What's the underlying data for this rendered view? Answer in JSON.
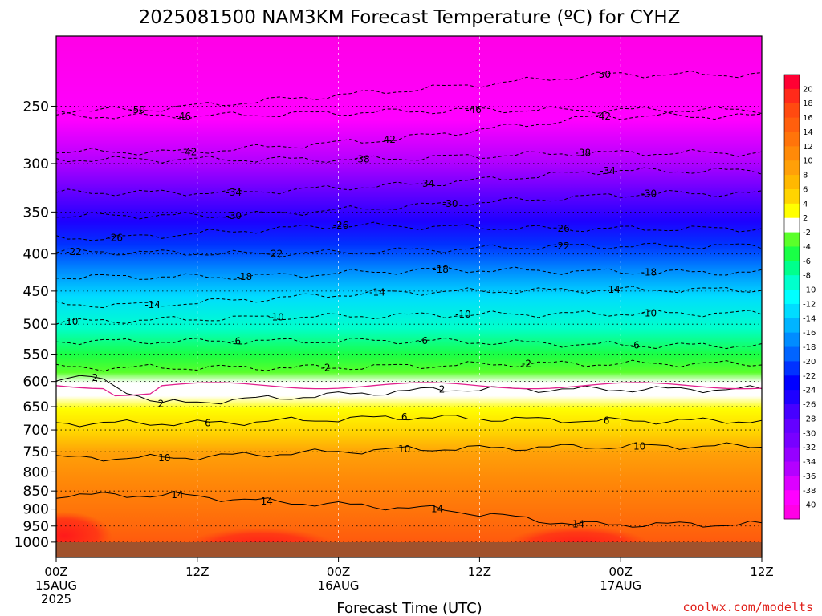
{
  "chart_data": {
    "type": "heatmap",
    "title": "2025081500 NAM3KM Forecast Temperature (ºC) for CYHZ",
    "xlabel": "Forecast Time (UTC)",
    "ylabel": "",
    "credit": "coolwx.com/modelts",
    "y_axis": {
      "scale": "log-pressure",
      "inverted": true,
      "range_hpa": [
        200,
        1050
      ],
      "ticks": [
        "250",
        "300",
        "350",
        "400",
        "450",
        "500",
        "550",
        "600",
        "650",
        "700",
        "750",
        "800",
        "850",
        "900",
        "950",
        "1000"
      ]
    },
    "x_axis": {
      "range_hours": [
        0,
        60
      ],
      "ticks": [
        {
          "hour": 0,
          "label": "00Z",
          "date": "15AUG",
          "year": "2025"
        },
        {
          "hour": 12,
          "label": "12Z",
          "date": "",
          "year": ""
        },
        {
          "hour": 24,
          "label": "00Z",
          "date": "16AUG",
          "year": ""
        },
        {
          "hour": 36,
          "label": "12Z",
          "date": "",
          "year": ""
        },
        {
          "hour": 48,
          "label": "00Z",
          "date": "17AUG",
          "year": ""
        },
        {
          "hour": 60,
          "label": "12Z",
          "date": "",
          "year": ""
        }
      ]
    },
    "grid": true,
    "colorbar": {
      "placement": "right",
      "labels": [
        "20",
        "18",
        "16",
        "14",
        "12",
        "10",
        "8",
        "6",
        "4",
        "2",
        "-2",
        "-4",
        "-6",
        "-8",
        "-10",
        "-12",
        "-14",
        "-16",
        "-18",
        "-20",
        "-22",
        "-24",
        "-26",
        "-28",
        "-30",
        "-32",
        "-34",
        "-36",
        "-38",
        "-40"
      ],
      "colors": [
        "#ff0033",
        "#ff2a1a",
        "#ff4a10",
        "#ff5f0d",
        "#ff740a",
        "#ff8a08",
        "#ffa008",
        "#ffb800",
        "#ffd400",
        "#ffff00",
        "#ffffff",
        "#5aff2a",
        "#19ff46",
        "#00ff8c",
        "#00ffcc",
        "#00ffff",
        "#00dcff",
        "#00b4ff",
        "#008cff",
        "#0064ff",
        "#0032ff",
        "#0000ff",
        "#1e00ff",
        "#4600ff",
        "#6400ff",
        "#7800ff",
        "#9600ff",
        "#b400ff",
        "#dc00ff",
        "#ff00ff",
        "#ff00e6"
      ]
    },
    "contour_labels": [
      {
        "text": "-50",
        "x": 6.9,
        "p": 253
      },
      {
        "text": "-46",
        "x": 10.8,
        "p": 258
      },
      {
        "text": "-46",
        "x": 35.5,
        "p": 253
      },
      {
        "text": "-42",
        "x": 46.5,
        "p": 258
      },
      {
        "text": "-50",
        "x": 46.5,
        "p": 226
      },
      {
        "text": "-42",
        "x": 28.2,
        "p": 278
      },
      {
        "text": "-42",
        "x": 11.3,
        "p": 289
      },
      {
        "text": "-38",
        "x": 26.0,
        "p": 296
      },
      {
        "text": "-38",
        "x": 44.8,
        "p": 290
      },
      {
        "text": "-34",
        "x": 46.9,
        "p": 307
      },
      {
        "text": "-34",
        "x": 31.5,
        "p": 320
      },
      {
        "text": "-34",
        "x": 15.1,
        "p": 329
      },
      {
        "text": "-30",
        "x": 15.1,
        "p": 354
      },
      {
        "text": "-30",
        "x": 33.5,
        "p": 341
      },
      {
        "text": "-30",
        "x": 50.4,
        "p": 330
      },
      {
        "text": "-26",
        "x": 5.0,
        "p": 380
      },
      {
        "text": "-26",
        "x": 24.2,
        "p": 365
      },
      {
        "text": "-26",
        "x": 43.0,
        "p": 369
      },
      {
        "text": "-22",
        "x": 1.5,
        "p": 397
      },
      {
        "text": "-22",
        "x": 18.6,
        "p": 400
      },
      {
        "text": "-22",
        "x": 43.0,
        "p": 390
      },
      {
        "text": "-18",
        "x": 16.0,
        "p": 430
      },
      {
        "text": "-18",
        "x": 32.7,
        "p": 420
      },
      {
        "text": "-18",
        "x": 50.4,
        "p": 424
      },
      {
        "text": "-14",
        "x": 8.2,
        "p": 470
      },
      {
        "text": "-14",
        "x": 27.3,
        "p": 452
      },
      {
        "text": "-14",
        "x": 47.3,
        "p": 448
      },
      {
        "text": "-10",
        "x": 1.2,
        "p": 496
      },
      {
        "text": "-10",
        "x": 18.7,
        "p": 489
      },
      {
        "text": "-10",
        "x": 34.6,
        "p": 485
      },
      {
        "text": "-10",
        "x": 50.4,
        "p": 483
      },
      {
        "text": "-6",
        "x": 15.3,
        "p": 528
      },
      {
        "text": "-6",
        "x": 31.2,
        "p": 527
      },
      {
        "text": "-6",
        "x": 49.2,
        "p": 535
      },
      {
        "text": "-2",
        "x": 22.9,
        "p": 574
      },
      {
        "text": "-2",
        "x": 40.0,
        "p": 567
      },
      {
        "text": "2",
        "x": 3.3,
        "p": 593
      },
      {
        "text": "2",
        "x": 8.9,
        "p": 644
      },
      {
        "text": "2",
        "x": 32.8,
        "p": 615
      },
      {
        "text": "6",
        "x": 12.9,
        "p": 685
      },
      {
        "text": "6",
        "x": 29.6,
        "p": 672
      },
      {
        "text": "6",
        "x": 46.8,
        "p": 680
      },
      {
        "text": "10",
        "x": 9.2,
        "p": 765
      },
      {
        "text": "10",
        "x": 29.6,
        "p": 744
      },
      {
        "text": "10",
        "x": 49.6,
        "p": 737
      },
      {
        "text": "14",
        "x": 10.3,
        "p": 861
      },
      {
        "text": "14",
        "x": 17.9,
        "p": 878
      },
      {
        "text": "14",
        "x": 32.4,
        "p": 900
      },
      {
        "text": "14",
        "x": 44.4,
        "p": 945
      }
    ]
  }
}
